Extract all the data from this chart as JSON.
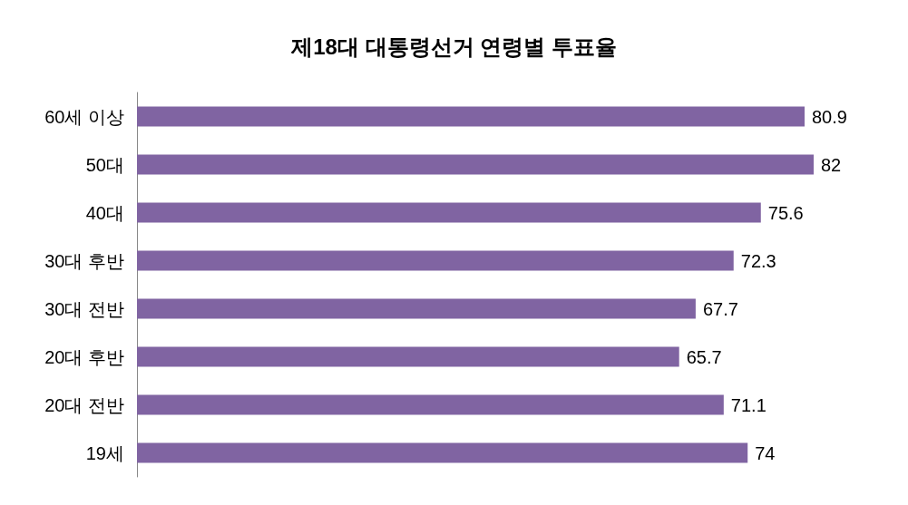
{
  "chart_data": {
    "type": "bar",
    "orientation": "horizontal",
    "title": "제18대 대통령선거 연령별 투표율",
    "categories": [
      "60세 이상",
      "50대",
      "40대",
      "30대 후반",
      "30대 전반",
      "20대 후반",
      "20대 전반",
      "19세"
    ],
    "values": [
      80.9,
      82,
      75.6,
      72.3,
      67.7,
      65.7,
      71.1,
      74
    ],
    "color": "#8064a2",
    "data_labels": true
  }
}
